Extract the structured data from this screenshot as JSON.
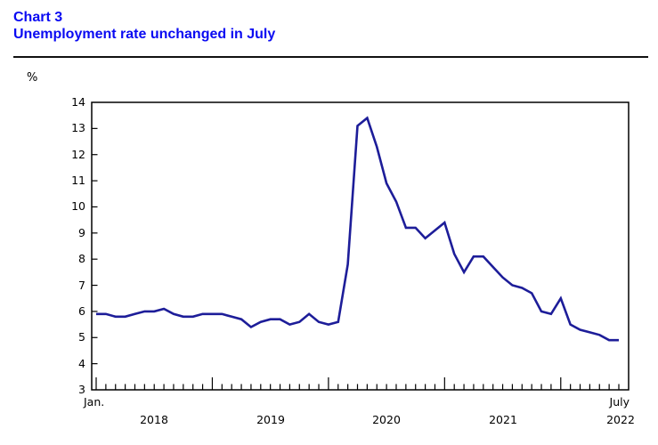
{
  "header": {
    "chart_label": "Chart 3",
    "title": "Unemployment rate unchanged in July"
  },
  "chart_data": {
    "type": "line",
    "title": "Chart 3 — Unemployment rate unchanged in July",
    "ylabel": "%",
    "xlabel": "",
    "ylim": [
      3,
      14
    ],
    "y_ticks": [
      3,
      4,
      5,
      6,
      7,
      8,
      9,
      10,
      11,
      12,
      13,
      14
    ],
    "grid": false,
    "legend": "none",
    "x_axis": {
      "start_month_label": "Jan.",
      "end_month_label": "July",
      "year_labels": [
        "2018",
        "2019",
        "2020",
        "2021",
        "2022"
      ],
      "range": "January 2018 to July 2022",
      "tick_interval": "monthly"
    },
    "series": [
      {
        "name": "Unemployment rate",
        "unit": "%",
        "start": "2018-01",
        "frequency": "monthly",
        "values": [
          5.9,
          5.9,
          5.8,
          5.8,
          5.9,
          6.0,
          6.0,
          6.1,
          5.9,
          5.8,
          5.8,
          5.9,
          5.9,
          5.9,
          5.8,
          5.7,
          5.4,
          5.6,
          5.7,
          5.7,
          5.5,
          5.6,
          5.9,
          5.6,
          5.5,
          5.6,
          7.8,
          13.1,
          13.4,
          12.3,
          10.9,
          10.2,
          9.2,
          9.2,
          8.8,
          9.1,
          9.4,
          8.2,
          7.5,
          8.1,
          8.1,
          7.7,
          7.3,
          7.0,
          6.9,
          6.7,
          6.0,
          5.9,
          6.5,
          5.5,
          5.3,
          5.2,
          5.1,
          4.9,
          4.9
        ]
      }
    ],
    "colors": {
      "line": "#1d1d99",
      "title": "#0a0af2",
      "axis": "#000000"
    }
  }
}
